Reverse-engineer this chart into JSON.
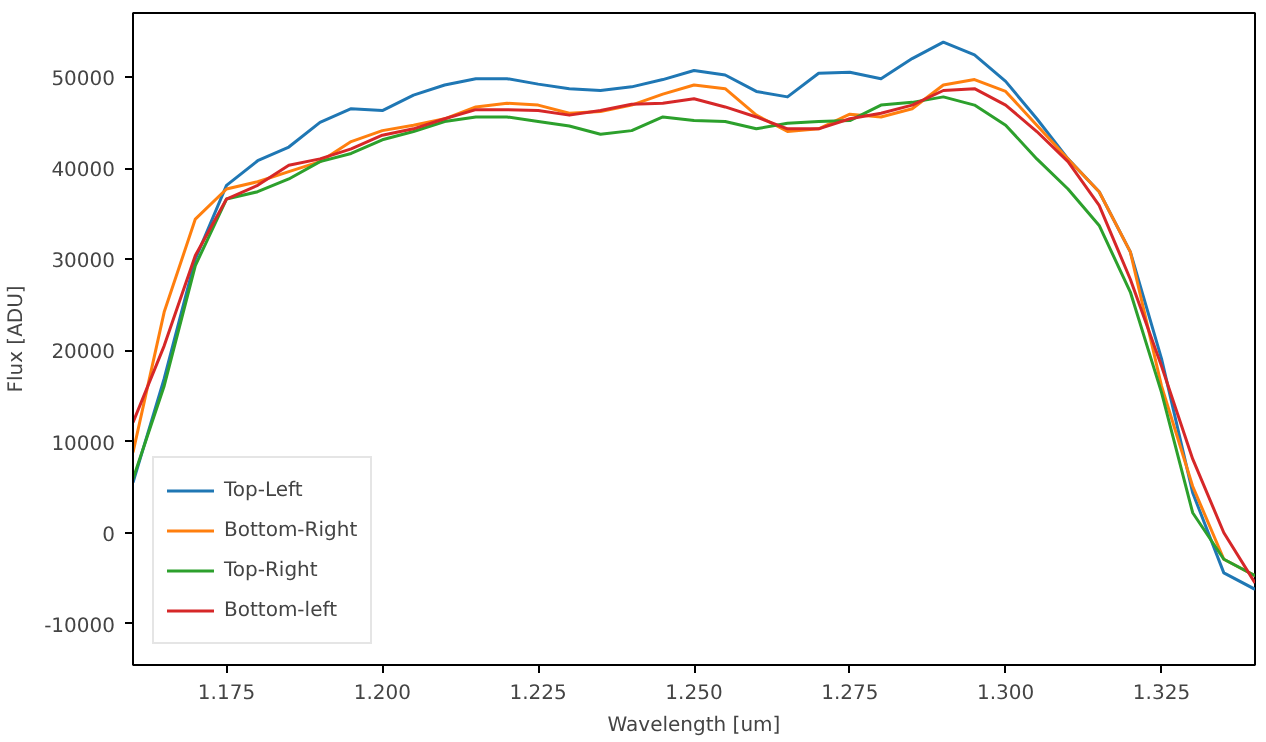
{
  "chart_data": {
    "type": "line",
    "xlabel": "Wavelength [um]",
    "ylabel": "Flux [ADU]",
    "x": [
      1.16,
      1.165,
      1.17,
      1.175,
      1.18,
      1.185,
      1.19,
      1.195,
      1.2,
      1.205,
      1.21,
      1.215,
      1.22,
      1.225,
      1.23,
      1.235,
      1.24,
      1.245,
      1.25,
      1.255,
      1.26,
      1.265,
      1.27,
      1.275,
      1.28,
      1.285,
      1.29,
      1.295,
      1.3,
      1.305,
      1.31,
      1.315,
      1.32,
      1.325,
      1.33,
      1.335,
      1.34
    ],
    "series": [
      {
        "name": "Top-Left",
        "color": "#1f77b4",
        "values": [
          5500,
          16900,
          30000,
          38100,
          40800,
          42300,
          45000,
          46500,
          46300,
          48000,
          49100,
          49800,
          49800,
          49200,
          48700,
          48500,
          48900,
          49700,
          50700,
          50200,
          48400,
          47800,
          50400,
          50500,
          49800,
          52000,
          53800,
          52400,
          49500,
          45400,
          41000,
          37400,
          30800,
          19100,
          4400,
          -4400,
          -6200
        ]
      },
      {
        "name": "Bottom-Right",
        "color": "#ff7f0e",
        "values": [
          8800,
          24200,
          34400,
          37700,
          38500,
          39600,
          40700,
          42900,
          44100,
          44700,
          45400,
          46700,
          47100,
          46900,
          46000,
          46200,
          46900,
          48100,
          49100,
          48700,
          45800,
          44000,
          44300,
          45900,
          45600,
          46500,
          49100,
          49700,
          48400,
          44700,
          41000,
          37400,
          30800,
          16100,
          5100,
          -2900,
          -4700
        ]
      },
      {
        "name": "Top-Right",
        "color": "#2ca02c",
        "values": [
          5900,
          16100,
          29300,
          36600,
          37400,
          38800,
          40700,
          41600,
          43100,
          44000,
          45100,
          45600,
          45600,
          45100,
          44600,
          43700,
          44100,
          45600,
          45200,
          45100,
          44300,
          44900,
          45100,
          45200,
          46900,
          47200,
          47800,
          46900,
          44700,
          41000,
          37700,
          33700,
          26400,
          15400,
          2200,
          -2900,
          -4700
        ]
      },
      {
        "name": "Bottom-left",
        "color": "#d62728",
        "values": [
          12100,
          20500,
          30400,
          36600,
          38100,
          40300,
          41000,
          42100,
          43600,
          44300,
          45400,
          46400,
          46400,
          46300,
          45800,
          46300,
          47000,
          47100,
          47600,
          46700,
          45600,
          44300,
          44300,
          45400,
          46000,
          46900,
          48500,
          48700,
          46900,
          44000,
          40700,
          35900,
          27800,
          18300,
          8100,
          0,
          -5500
        ]
      }
    ],
    "xlim": [
      1.16,
      1.34
    ],
    "ylim": [
      -14500,
      57000
    ],
    "xticks": [
      1.175,
      {
        "value": 1.2,
        "label": "1.200"
      },
      1.225,
      {
        "value": 1.25,
        "label": "1.250"
      },
      1.275,
      {
        "value": 1.3,
        "label": "1.300"
      },
      1.325
    ],
    "yticks": [
      -10000,
      0,
      10000,
      20000,
      30000,
      40000,
      50000
    ],
    "grid": false,
    "legend": "bottom left"
  }
}
